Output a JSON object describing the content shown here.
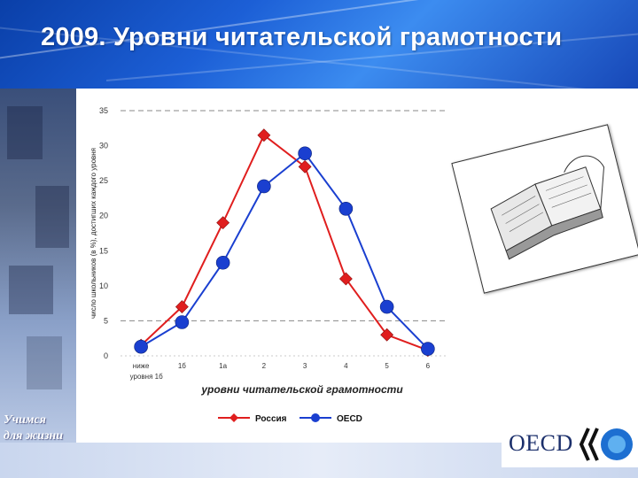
{
  "slide": {
    "title": "2009. Уровни читательской грамотности",
    "motto_line1": "Учимся",
    "motto_line2": "для жизни",
    "logo_text": "OECD"
  },
  "colors": {
    "russia": "#e01e1e",
    "oecd": "#1a3fd0",
    "title_bar": "#1c5fd6"
  },
  "chart_data": {
    "type": "line",
    "title": "",
    "xlabel": "уровни читательской грамотности",
    "ylabel": "число школьников (в %), достигших каждого уровня",
    "x": [
      "ниже уровня 1б",
      "1б",
      "1а",
      "2",
      "3",
      "4",
      "5",
      "6"
    ],
    "ylim": [
      0,
      35
    ],
    "yticks": [
      0,
      5,
      10,
      15,
      20,
      25,
      30,
      35
    ],
    "grid": "dashed at 5 and 35",
    "legend_position": "bottom",
    "series": [
      {
        "name": "Россия",
        "marker": "diamond",
        "color": "#e01e1e",
        "values": [
          1.5,
          7,
          19,
          31.5,
          27,
          11,
          3,
          0.8
        ]
      },
      {
        "name": "OECD",
        "marker": "circle",
        "color": "#1a3fd0",
        "values": [
          1.3,
          4.8,
          13.3,
          24.2,
          28.9,
          21,
          7,
          1
        ]
      }
    ]
  }
}
